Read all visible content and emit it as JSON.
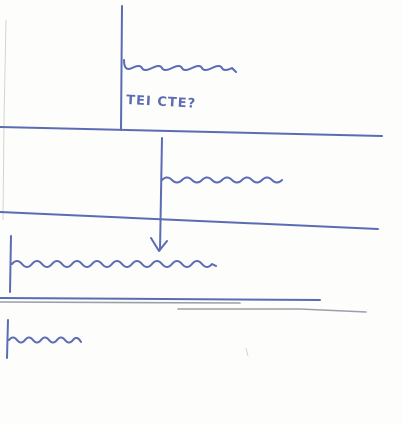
{
  "sketch": {
    "label": "TEI CTE?"
  }
}
